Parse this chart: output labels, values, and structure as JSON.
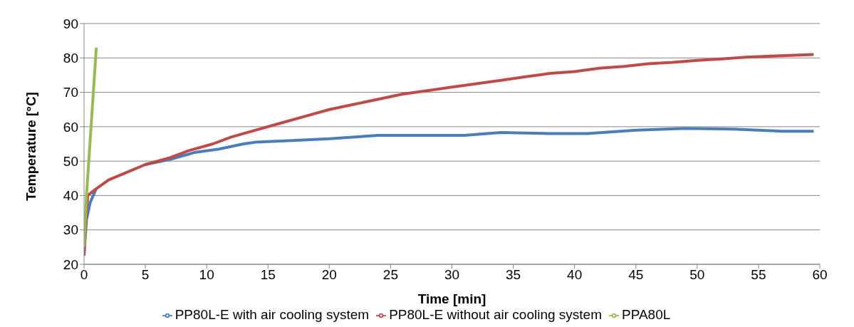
{
  "chart_data": {
    "type": "line",
    "xlabel": "Time [min]",
    "ylabel": "Temperature [°C]",
    "xlim": [
      0,
      60
    ],
    "xticks": [
      0,
      5,
      10,
      15,
      20,
      25,
      30,
      35,
      40,
      45,
      50,
      55,
      60
    ],
    "ylim": [
      20,
      90
    ],
    "yticks": [
      20,
      30,
      40,
      50,
      60,
      70,
      80,
      90
    ],
    "grid": "y",
    "legend": "bottom",
    "marker": "none",
    "line_style": "solid",
    "series": [
      {
        "name": "PP80L-E with air cooling system",
        "color": "#4a7ebb",
        "x": [
          0,
          0.2,
          0.5,
          1,
          2,
          3,
          5,
          7,
          9,
          11,
          13,
          14,
          17,
          20,
          24,
          28,
          31,
          34,
          38,
          41,
          45,
          49,
          53,
          57,
          59.5
        ],
        "values": [
          23,
          33,
          38,
          42,
          null,
          null,
          49,
          50.5,
          52.5,
          53.5,
          55,
          55.5,
          56,
          56.5,
          57.5,
          57.5,
          57.5,
          58.3,
          58,
          58,
          59,
          59.5,
          59.3,
          58.7,
          58.7
        ]
      },
      {
        "name": "PP80L-E without air cooling system",
        "color": "#be4b48",
        "x": [
          0,
          0.1,
          0.3,
          1,
          2,
          3,
          5,
          7,
          8.5,
          10.5,
          12,
          14,
          16,
          18,
          20,
          22,
          24,
          26,
          28,
          30,
          32,
          34,
          36,
          38,
          40,
          42,
          44,
          46,
          48,
          50,
          52,
          54,
          56,
          58,
          59.5
        ],
        "values": [
          22.5,
          30,
          40,
          42,
          44.5,
          46,
          49,
          51,
          53,
          55,
          57,
          59,
          61,
          63,
          65,
          66.5,
          68,
          69.5,
          70.5,
          71.5,
          72.5,
          73.5,
          74.5,
          75.5,
          76,
          77,
          77.5,
          78.3,
          78.7,
          79.3,
          79.7,
          80.2,
          80.5,
          80.8,
          81
        ]
      },
      {
        "name": "PPA80L",
        "color": "#98b954",
        "x": [
          0,
          0.2,
          1
        ],
        "values": [
          25,
          40,
          83
        ]
      }
    ]
  }
}
